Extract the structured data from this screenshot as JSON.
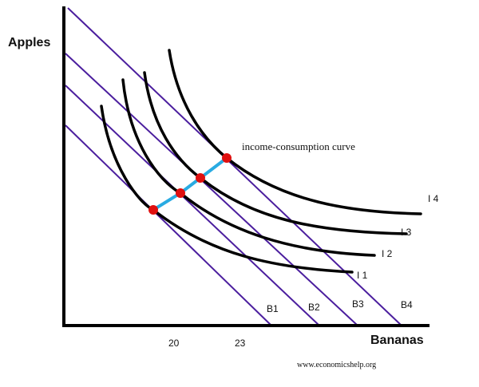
{
  "axes": {
    "y_label": "Apples",
    "x_label": "Bananas",
    "x_ticks": [
      "20",
      "23"
    ]
  },
  "budget_lines": [
    "B1",
    "B2",
    "B3",
    "B4"
  ],
  "indifference_curves": [
    "I 1",
    "I 2",
    "I 3",
    "I 4"
  ],
  "icc_label": "income-consumption curve",
  "credit": "www.economicshelp.org",
  "colors": {
    "budget_line": "#4b1e9e",
    "indifference_curve": "#000000",
    "icc": "#29abe2",
    "point": "#e01010",
    "axis": "#000000"
  }
}
